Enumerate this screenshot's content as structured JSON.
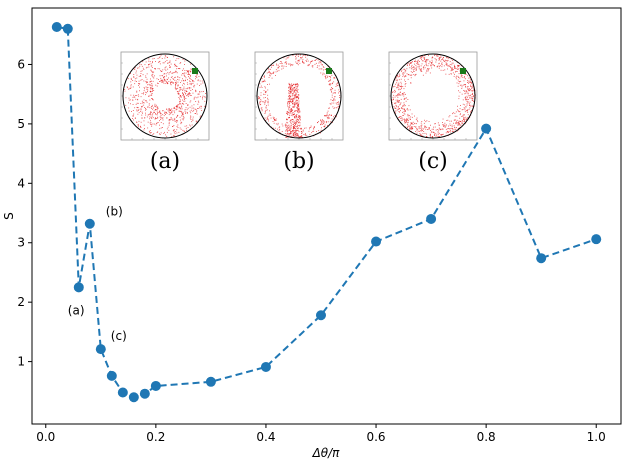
{
  "chart_data": {
    "type": "line",
    "xlabel": "Δθ/π",
    "ylabel": "S",
    "xlim": [
      -0.025,
      1.045
    ],
    "ylim": [
      -0.05,
      6.95
    ],
    "xticks": [
      "0.0",
      "0.2",
      "0.4",
      "0.6",
      "0.8",
      "1.0"
    ],
    "yticks": [
      "1",
      "2",
      "3",
      "4",
      "5",
      "6"
    ],
    "grid": false,
    "series_color": "#1f77b4",
    "line_style": "dashed",
    "series": [
      {
        "x": [
          0.02,
          0.04,
          0.06,
          0.08,
          0.1,
          0.12,
          0.14,
          0.16,
          0.18,
          0.2,
          0.3,
          0.4,
          0.5,
          0.6,
          0.7,
          0.8,
          0.9,
          1.0
        ],
        "y": [
          6.63,
          6.6,
          2.25,
          3.32,
          1.21,
          0.76,
          0.48,
          0.4,
          0.46,
          0.59,
          0.66,
          0.91,
          1.78,
          3.02,
          3.4,
          4.92,
          2.74,
          3.06
        ]
      }
    ],
    "annotations": [
      {
        "text": "(a)",
        "x": 0.06,
        "y": 2.25
      },
      {
        "text": "(b)",
        "x": 0.08,
        "y": 3.32
      },
      {
        "text": "(c)",
        "x": 0.1,
        "y": 1.21
      }
    ],
    "insets": [
      {
        "label": "(a)",
        "point_color": "#e31a1c",
        "marker_color": "#1a7a1a"
      },
      {
        "label": "(b)",
        "point_color": "#e31a1c",
        "marker_color": "#1a7a1a"
      },
      {
        "label": "(c)",
        "point_color": "#e31a1c",
        "marker_color": "#1a7a1a"
      }
    ]
  }
}
